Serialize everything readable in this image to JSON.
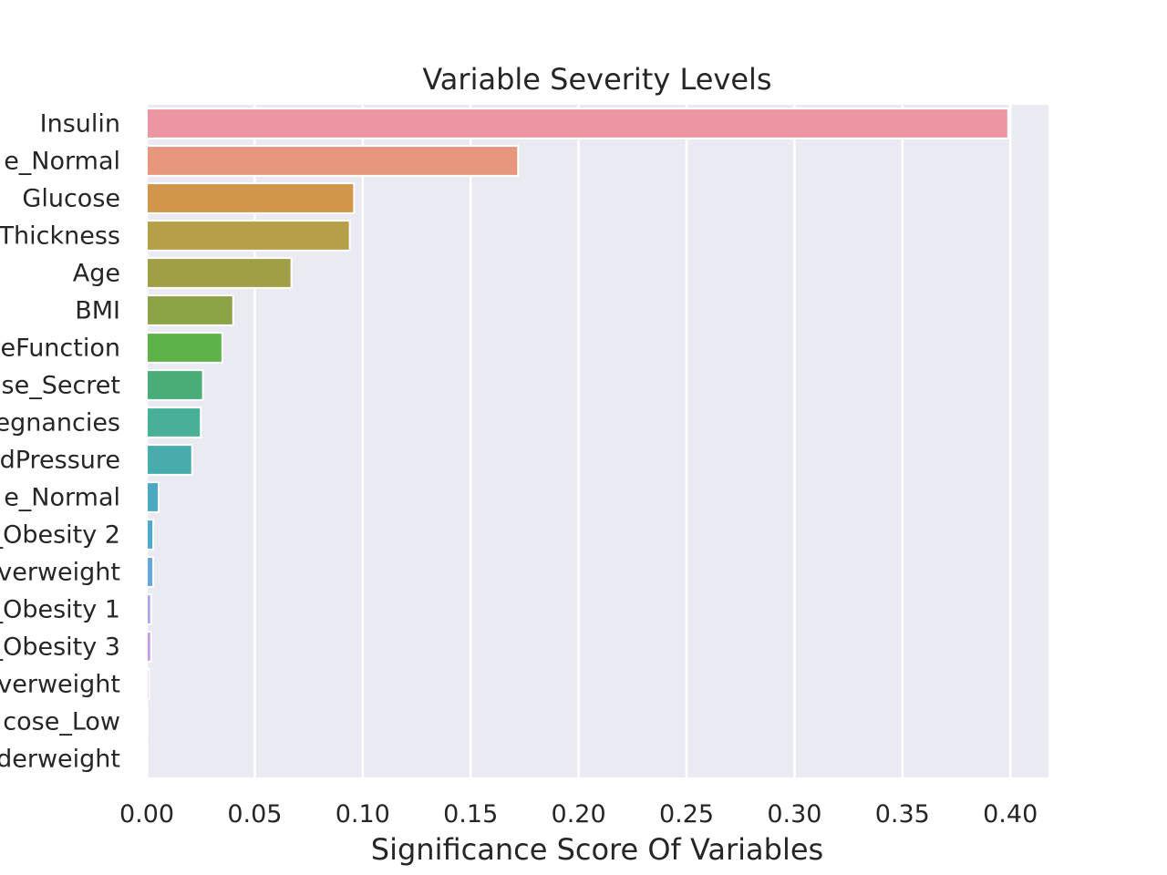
{
  "chart_data": {
    "type": "bar",
    "orientation": "horizontal",
    "title": "Variable Severity Levels",
    "xlabel": "Significance Score Of Variables",
    "ylabel": "",
    "xlim": [
      0,
      0.42
    ],
    "x_ticks": [
      "0.00",
      "0.05",
      "0.10",
      "0.15",
      "0.20",
      "0.25",
      "0.30",
      "0.35",
      "0.40"
    ],
    "grid": true,
    "categories": [
      "Insulin",
      "e_Normal",
      "Glucose",
      "Thickness",
      "Age",
      "BMI",
      "eFunction",
      "se_Secret",
      "egnancies",
      "dPressure",
      "e_Normal",
      "_Obesity 2",
      "overweight",
      "_Obesity 1",
      "_Obesity 3",
      "overweight",
      "cose_Low",
      "derweight"
    ],
    "values": [
      0.399,
      0.172,
      0.096,
      0.094,
      0.067,
      0.04,
      0.035,
      0.026,
      0.025,
      0.021,
      0.0055,
      0.003,
      0.003,
      0.002,
      0.002,
      0.001,
      0.0003,
      0.0002
    ],
    "colors": [
      "#eb96a2",
      "#e8977f",
      "#d19649",
      "#b79f4a",
      "#a19f46",
      "#8ba346",
      "#5db34a",
      "#48ad77",
      "#48b096",
      "#49acac",
      "#4ba9c1",
      "#4eaacd",
      "#66a6dd",
      "#a6a6e8",
      "#c59ae8",
      "#e38ee0",
      "#e88fb8",
      "#eb96a2"
    ],
    "background_color": "#eaeaf2",
    "grid_color": "#ffffff"
  }
}
